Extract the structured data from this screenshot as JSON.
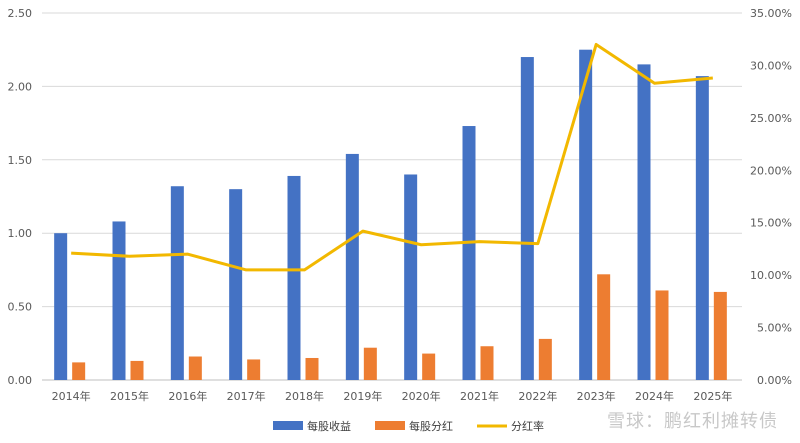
{
  "watermark": "雪球：鹏红利摊转债",
  "chart_data": {
    "type": "bar",
    "categories": [
      "2014年",
      "2015年",
      "2016年",
      "2017年",
      "2018年",
      "2019年",
      "2020年",
      "2021年",
      "2022年",
      "2023年",
      "2024年",
      "2025年"
    ],
    "series": [
      {
        "name": "每股收益",
        "type": "bar",
        "axis": "left",
        "color": "#4472C4",
        "values": [
          1.0,
          1.08,
          1.32,
          1.3,
          1.39,
          1.54,
          1.4,
          1.73,
          2.2,
          2.25,
          2.15,
          2.07
        ]
      },
      {
        "name": "每股分红",
        "type": "bar",
        "axis": "left",
        "color": "#ED7D31",
        "values": [
          0.12,
          0.13,
          0.16,
          0.14,
          0.15,
          0.22,
          0.18,
          0.23,
          0.28,
          0.72,
          0.61,
          0.6
        ]
      },
      {
        "name": "分红率",
        "type": "line",
        "axis": "right",
        "color": "#F2B800",
        "values": [
          12.1,
          11.8,
          12.0,
          10.5,
          10.5,
          14.2,
          12.9,
          13.2,
          13.0,
          32.0,
          28.3,
          28.8
        ]
      }
    ],
    "y_left": {
      "min": 0,
      "max": 2.5,
      "ticks": [
        "0.00",
        "0.50",
        "1.00",
        "1.50",
        "2.00",
        "2.50"
      ]
    },
    "y_right": {
      "min": 0,
      "max": 35,
      "ticks": [
        "0.00%",
        "5.00%",
        "10.00%",
        "15.00%",
        "20.00%",
        "25.00%",
        "30.00%",
        "35.00%"
      ]
    },
    "grid": true,
    "legend_position": "bottom"
  }
}
